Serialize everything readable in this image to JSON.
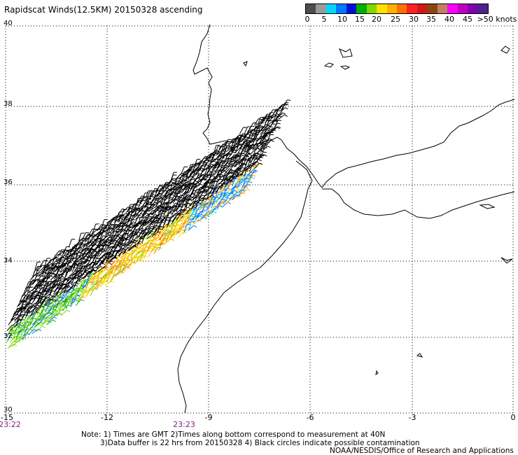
{
  "title": "Rapidscat Winds(12.5KM) 20150328 ascending",
  "legend": {
    "colors": [
      "#4d4d4d",
      "#9a9a9a",
      "#00d8ff",
      "#0078ff",
      "#0010d8",
      "#00b000",
      "#7fd800",
      "#ffe000",
      "#ffb000",
      "#ff7000",
      "#ff2020",
      "#d01818",
      "#8b4513",
      "#c08060",
      "#ff00ff",
      "#c000c0",
      "#8000b0",
      "#50208a"
    ],
    "ticks": [
      "0",
      "5",
      "10",
      "15",
      "20",
      "25",
      "30",
      "35",
      "40",
      "45",
      ">50 knots"
    ]
  },
  "map": {
    "lat_labels": [
      "40",
      "38",
      "36",
      "34",
      "32",
      "30"
    ],
    "lon_labels": [
      "-15",
      "-12",
      "-9",
      "-6",
      "-3",
      "0"
    ],
    "time_labels": [
      "23:22",
      "23:23"
    ]
  },
  "notes": {
    "line1": "Note: 1) Times are GMT 2)Times along bottom correspond to measurement at 40N",
    "line2": "3)Data buffer is 22 hrs from 20150328 4) Black circles indicate possible contamination"
  },
  "credit": "NOAA/NESDIS/Office of Research and Applications"
}
